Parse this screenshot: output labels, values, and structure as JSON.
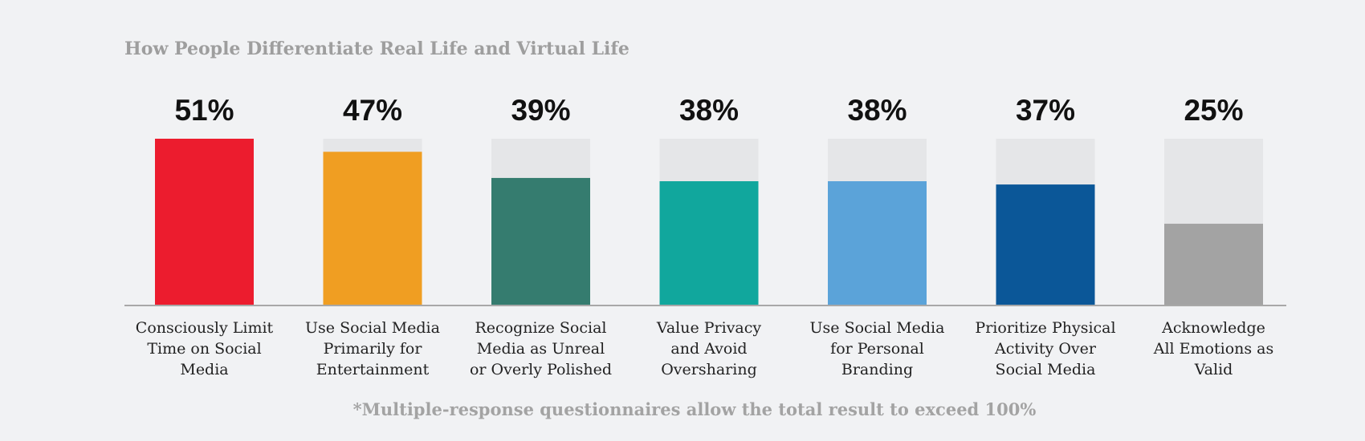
{
  "chart_data": {
    "type": "bar",
    "title": "How People Differentiate Real Life and Virtual Life",
    "categories": [
      [
        "Consciously Limit",
        "Time on Social",
        "Media"
      ],
      [
        "Use Social Media",
        "Primarily for",
        "Entertainment"
      ],
      [
        "Recognize Social",
        "Media as Unreal",
        "or Overly Polished"
      ],
      [
        "Value Privacy",
        "and Avoid",
        "Oversharing"
      ],
      [
        "Use Social Media",
        "for Personal",
        "Branding"
      ],
      [
        "Prioritize Physical",
        "Activity Over",
        "Social Media"
      ],
      [
        "Acknowledge",
        "All Emotions as",
        "Valid"
      ]
    ],
    "values": [
      51,
      47,
      39,
      38,
      38,
      37,
      25
    ],
    "value_labels": [
      "51%",
      "47%",
      "39%",
      "38%",
      "38%",
      "37%",
      "25%"
    ],
    "colors": [
      "#ec1c2e",
      "#f09e22",
      "#357c6f",
      "#11a79d",
      "#5ba3d9",
      "#0b5798",
      "#a3a3a3"
    ],
    "track_color": "#e5e6e8",
    "ylim": [
      0,
      51
    ],
    "grid": false
  },
  "footnote": "*Multiple-response questionnaires allow the total result to exceed 100%"
}
